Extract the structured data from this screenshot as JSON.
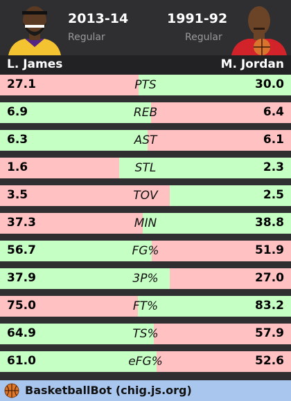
{
  "header": {
    "left_season": "2013-14",
    "left_type": "Regular",
    "right_season": "1991-92",
    "right_type": "Regular"
  },
  "players": {
    "left": "L. James",
    "right": "M. Jordan"
  },
  "colors": {
    "better": "#c6ffc4",
    "worse": "#ffc1c1",
    "footer": "#a9c6ee"
  },
  "stats": [
    {
      "label": "PTS",
      "left": "27.1",
      "right": "30.0",
      "left_better": false,
      "left_share": 0.475
    },
    {
      "label": "REB",
      "left": "6.9",
      "right": "6.4",
      "left_better": true,
      "left_share": 0.518
    },
    {
      "label": "AST",
      "left": "6.3",
      "right": "6.1",
      "left_better": true,
      "left_share": 0.508
    },
    {
      "label": "STL",
      "left": "1.6",
      "right": "2.3",
      "left_better": false,
      "left_share": 0.41
    },
    {
      "label": "TOV",
      "left": "3.5",
      "right": "2.5",
      "left_better": false,
      "left_share": 0.583
    },
    {
      "label": "MIN",
      "left": "37.3",
      "right": "38.8",
      "left_better": false,
      "left_share": 0.49
    },
    {
      "label": "FG%",
      "left": "56.7",
      "right": "51.9",
      "left_better": true,
      "left_share": 0.522
    },
    {
      "label": "3P%",
      "left": "37.9",
      "right": "27.0",
      "left_better": true,
      "left_share": 0.584
    },
    {
      "label": "FT%",
      "left": "75.0",
      "right": "83.2",
      "left_better": false,
      "left_share": 0.474
    },
    {
      "label": "TS%",
      "left": "64.9",
      "right": "57.9",
      "left_better": true,
      "left_share": 0.529
    },
    {
      "label": "eFG%",
      "left": "61.0",
      "right": "52.6",
      "left_better": true,
      "left_share": 0.537
    }
  ],
  "footer": {
    "text": "BasketballBot (chig.js.org)",
    "icon": "basketball-icon"
  }
}
